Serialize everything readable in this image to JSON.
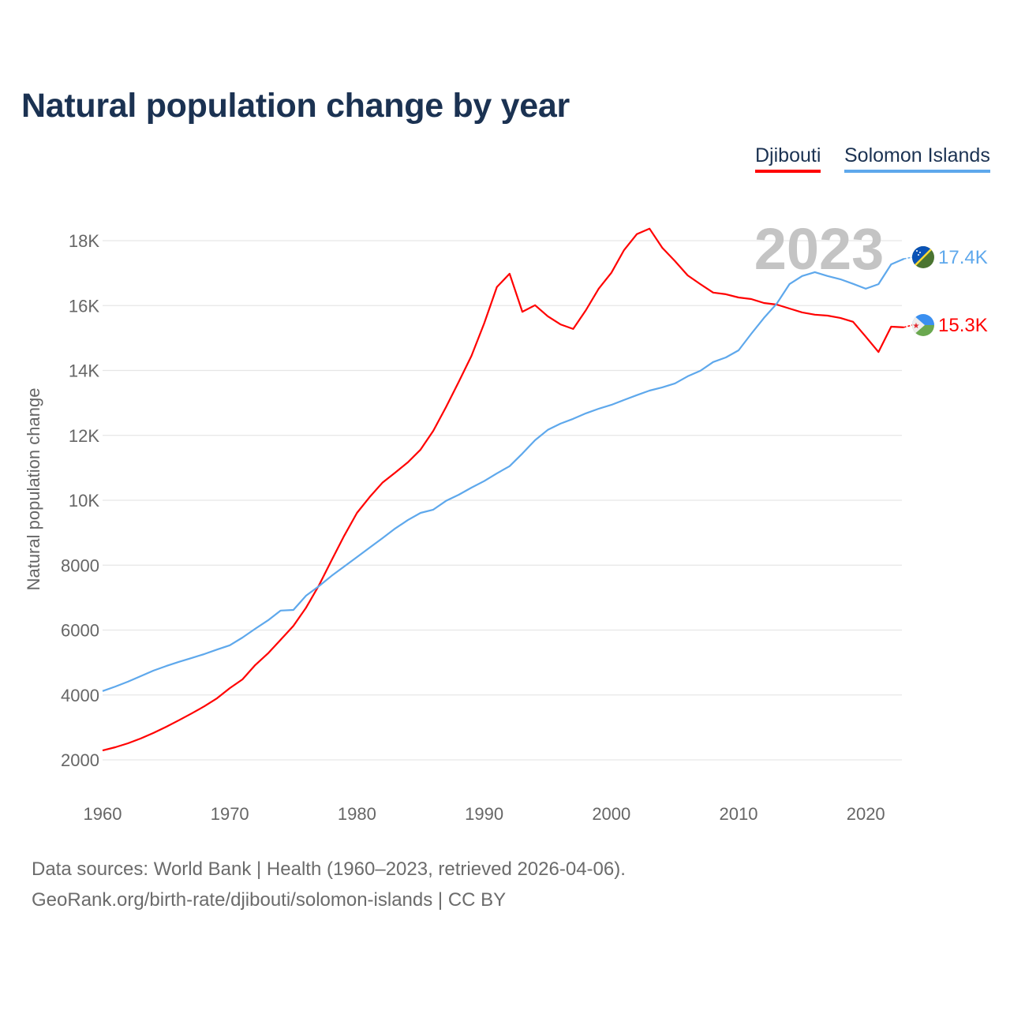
{
  "title": "Natural population change by year",
  "legend": [
    {
      "label": "Djibouti",
      "color": "#ff0000"
    },
    {
      "label": "Solomon Islands",
      "color": "#5ea8ec"
    }
  ],
  "year_badge": "2023",
  "end_labels": {
    "djibouti": "15.3K",
    "solomon": "17.4K"
  },
  "footer": {
    "line1": "Data sources: World Bank | Health (1960–2023, retrieved 2026-04-06).",
    "line2": "GeoRank.org/birth-rate/djibouti/solomon-islands | CC BY"
  },
  "chart_data": {
    "type": "line",
    "title": "Natural population change by year",
    "xlabel": "",
    "ylabel": "Natural population change",
    "xlim": [
      1960,
      2023
    ],
    "ylim": [
      2000,
      18000
    ],
    "x_ticks": [
      1960,
      1970,
      1980,
      1990,
      2000,
      2010,
      2020
    ],
    "y_ticks": [
      2000,
      4000,
      6000,
      8000,
      10000,
      12000,
      14000,
      16000,
      18000
    ],
    "y_tick_labels": [
      "2000",
      "4000",
      "6000",
      "8000",
      "10K",
      "12K",
      "14K",
      "16K",
      "18K"
    ],
    "grid": true,
    "legend_position": "top-right",
    "x": [
      1960,
      1961,
      1962,
      1963,
      1964,
      1965,
      1966,
      1967,
      1968,
      1969,
      1970,
      1971,
      1972,
      1973,
      1974,
      1975,
      1976,
      1977,
      1978,
      1979,
      1980,
      1981,
      1982,
      1983,
      1984,
      1985,
      1986,
      1987,
      1988,
      1989,
      1990,
      1991,
      1992,
      1993,
      1994,
      1995,
      1996,
      1997,
      1998,
      1999,
      2000,
      2001,
      2002,
      2003,
      2004,
      2005,
      2006,
      2007,
      2008,
      2009,
      2010,
      2011,
      2012,
      2013,
      2014,
      2015,
      2016,
      2017,
      2018,
      2019,
      2020,
      2021,
      2022,
      2023
    ],
    "series": [
      {
        "name": "Djibouti",
        "color": "#ff0000",
        "values": [
          2290,
          2390,
          2510,
          2660,
          2830,
          3020,
          3220,
          3430,
          3650,
          3900,
          4210,
          4480,
          4920,
          5280,
          5700,
          6130,
          6690,
          7370,
          8150,
          8910,
          9610,
          10100,
          10540,
          10850,
          11170,
          11560,
          12140,
          12870,
          13650,
          14450,
          15450,
          16570,
          16980,
          15810,
          16010,
          15670,
          15420,
          15280,
          15860,
          16520,
          17010,
          17710,
          18200,
          18370,
          17780,
          17370,
          16930,
          16660,
          16400,
          16350,
          16250,
          16200,
          16080,
          16030,
          15910,
          15790,
          15720,
          15690,
          15620,
          15500,
          15040,
          14570,
          15350,
          15330
        ]
      },
      {
        "name": "Solomon Islands",
        "color": "#5ea8ec",
        "values": [
          4120,
          4260,
          4410,
          4580,
          4750,
          4890,
          5020,
          5140,
          5260,
          5400,
          5530,
          5770,
          6040,
          6300,
          6600,
          6620,
          7060,
          7350,
          7670,
          7960,
          8250,
          8540,
          8830,
          9130,
          9390,
          9610,
          9710,
          9980,
          10170,
          10390,
          10590,
          10830,
          11050,
          11440,
          11850,
          12170,
          12360,
          12510,
          12680,
          12820,
          12940,
          13090,
          13240,
          13380,
          13480,
          13600,
          13820,
          13990,
          14260,
          14400,
          14620,
          15130,
          15620,
          16060,
          16660,
          16910,
          17030,
          16910,
          16810,
          16670,
          16520,
          16660,
          17270,
          17440
        ]
      }
    ]
  }
}
